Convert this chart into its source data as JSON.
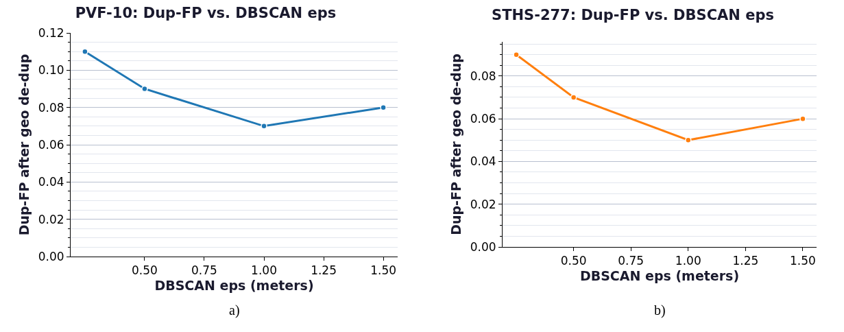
{
  "chart_data": [
    {
      "type": "line",
      "title": "PVF-10: Dup-FP vs. DBSCAN eps",
      "xlabel": "DBSCAN eps (meters)",
      "ylabel": "Dup-FP after geo de-dup",
      "x": [
        0.25,
        0.5,
        1.0,
        1.5
      ],
      "series": [
        {
          "color": "#1f77b4",
          "values": [
            0.11,
            0.09,
            0.07,
            0.08
          ]
        }
      ],
      "xlim": [
        0.19,
        1.56
      ],
      "xticks": [
        {
          "value": 0.5,
          "label": "0.50"
        },
        {
          "value": 0.75,
          "label": "0.75"
        },
        {
          "value": 1.0,
          "label": "1.00"
        },
        {
          "value": 1.25,
          "label": "1.25"
        },
        {
          "value": 1.5,
          "label": "1.50"
        }
      ],
      "ylim": [
        0,
        0.12
      ],
      "yticks": [
        {
          "value": 0,
          "label": "0.00"
        },
        {
          "value": 0.02,
          "label": "0.02"
        },
        {
          "value": 0.04,
          "label": "0.04"
        },
        {
          "value": 0.06,
          "label": "0.06"
        },
        {
          "value": 0.08,
          "label": "0.08"
        },
        {
          "value": 0.1,
          "label": "0.10"
        },
        {
          "value": 0.12,
          "label": "0.12"
        }
      ],
      "grid": "y",
      "marker": "circle",
      "line_style": "solid",
      "annotations": [
        "a)"
      ]
    },
    {
      "type": "line",
      "title": "STHS-277: Dup-FP vs. DBSCAN eps",
      "xlabel": "DBSCAN eps (meters)",
      "ylabel": "Dup-FP after geo de-dup",
      "x": [
        0.25,
        0.5,
        1.0,
        1.5
      ],
      "series": [
        {
          "color": "#ff7f0e",
          "values": [
            0.09,
            0.07,
            0.05,
            0.06
          ]
        }
      ],
      "xlim": [
        0.19,
        1.56
      ],
      "xticks": [
        {
          "value": 0.5,
          "label": "0.50"
        },
        {
          "value": 0.75,
          "label": "0.75"
        },
        {
          "value": 1.0,
          "label": "1.00"
        },
        {
          "value": 1.25,
          "label": "1.25"
        },
        {
          "value": 1.5,
          "label": "1.50"
        }
      ],
      "ylim": [
        0,
        0.096
      ],
      "yticks": [
        {
          "value": 0,
          "label": "0.00"
        },
        {
          "value": 0.02,
          "label": "0.02"
        },
        {
          "value": 0.04,
          "label": "0.04"
        },
        {
          "value": 0.06,
          "label": "0.06"
        },
        {
          "value": 0.08,
          "label": "0.08"
        }
      ],
      "grid": "y",
      "marker": "circle",
      "line_style": "solid",
      "annotations": [
        "b)"
      ]
    }
  ]
}
